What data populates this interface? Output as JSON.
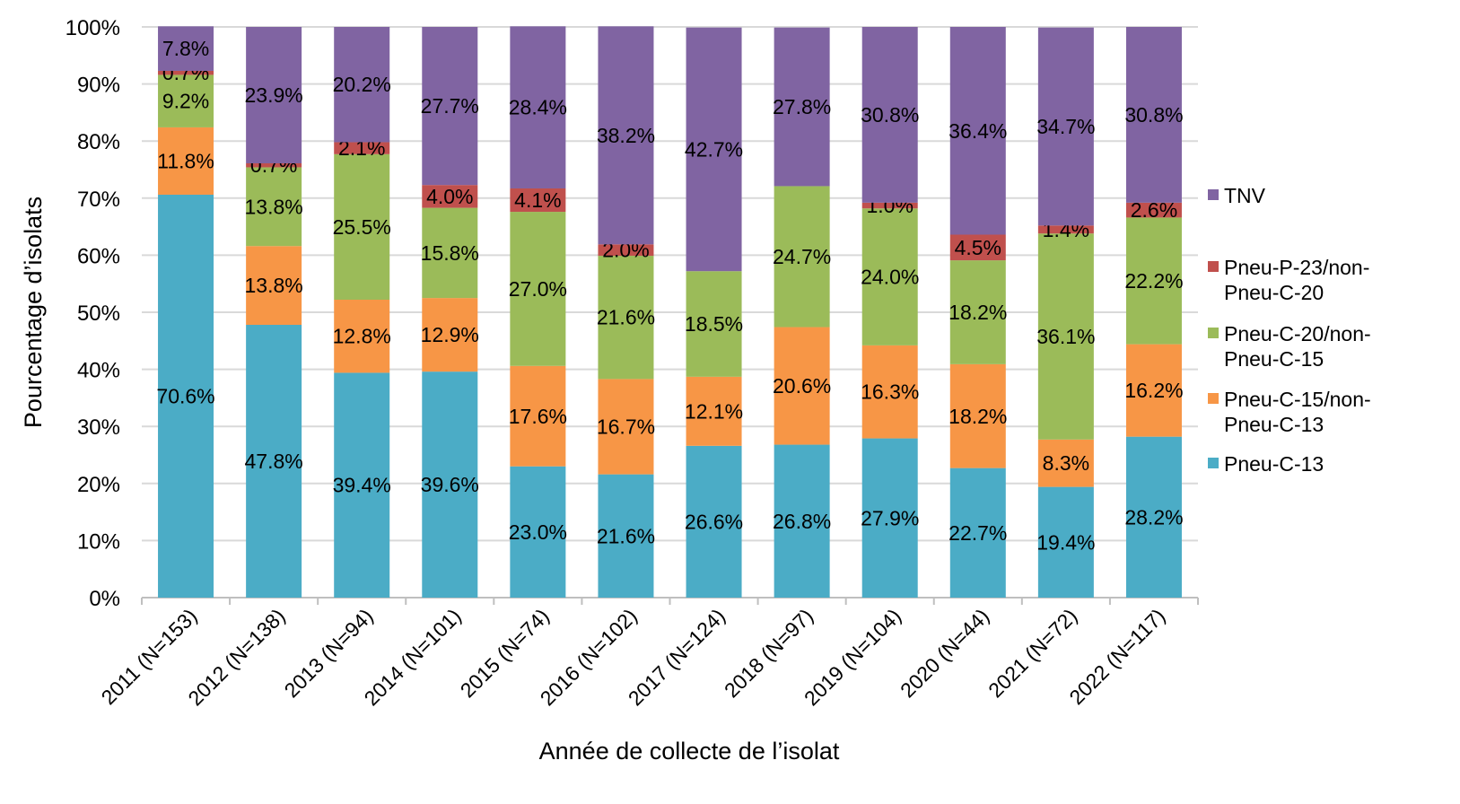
{
  "chart_data": {
    "type": "stacked-bar-100",
    "title": "",
    "xlabel": "Année de collecte de l’isolat",
    "ylabel": "Pourcentage d’isolats",
    "ylim": [
      0,
      100
    ],
    "yticks": [
      "0%",
      "10%",
      "20%",
      "30%",
      "40%",
      "50%",
      "60%",
      "70%",
      "80%",
      "90%",
      "100%"
    ],
    "grid": true,
    "legend_position": "right",
    "categories": [
      "2011 (N=153)",
      "2012 (N=138)",
      "2013 (N=94)",
      "2014 (N=101)",
      "2015 (N=74)",
      "2016 (N=102)",
      "2017 (N=124)",
      "2018 (N=97)",
      "2019 (N=104)",
      "2020 (N=44)",
      "2021 (N=72)",
      "2022 (N=117)"
    ],
    "series": [
      {
        "name": "Pneu-C-13",
        "color": "#4BACC6",
        "values": [
          70.6,
          47.8,
          39.4,
          39.6,
          23.0,
          21.6,
          26.6,
          26.8,
          27.9,
          22.7,
          19.4,
          28.2
        ]
      },
      {
        "name": "Pneu-C-15/non-Pneu-C-13",
        "color": "#F79646",
        "values": [
          11.8,
          13.8,
          12.8,
          12.9,
          17.6,
          16.7,
          12.1,
          20.6,
          16.3,
          18.2,
          8.3,
          16.2
        ]
      },
      {
        "name": "Pneu-C-20/non-Pneu-C-15",
        "color": "#9BBB59",
        "values": [
          9.2,
          13.8,
          25.5,
          15.8,
          27.0,
          21.6,
          18.5,
          24.7,
          24.0,
          18.2,
          36.1,
          22.2
        ]
      },
      {
        "name": "Pneu-P-23/non-Pneu-C-20",
        "color": "#C0504D",
        "values": [
          0.7,
          0.7,
          2.1,
          4.0,
          4.1,
          2.0,
          null,
          null,
          1.0,
          4.5,
          1.4,
          2.6
        ]
      },
      {
        "name": "TNV",
        "color": "#8064A2",
        "values": [
          7.8,
          23.9,
          20.2,
          27.7,
          28.4,
          38.2,
          42.7,
          27.8,
          30.8,
          36.4,
          34.7,
          30.8
        ]
      }
    ],
    "legend": [
      {
        "lines": [
          "TNV"
        ],
        "color": "#8064A2"
      },
      {
        "lines": [
          "Pneu-P-23/non-",
          "Pneu-C-20"
        ],
        "color": "#C0504D"
      },
      {
        "lines": [
          "Pneu-C-20/non-",
          "Pneu-C-15"
        ],
        "color": "#9BBB59"
      },
      {
        "lines": [
          "Pneu-C-15/non-",
          "Pneu-C-13"
        ],
        "color": "#F79646"
      },
      {
        "lines": [
          "Pneu-C-13"
        ],
        "color": "#4BACC6"
      }
    ]
  }
}
